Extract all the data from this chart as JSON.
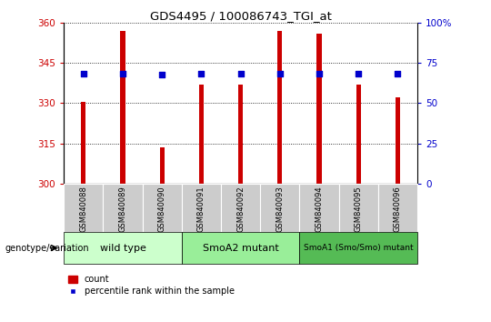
{
  "title": "GDS4495 / 100086743_TGI_at",
  "samples": [
    "GSM840088",
    "GSM840089",
    "GSM840090",
    "GSM840091",
    "GSM840092",
    "GSM840093",
    "GSM840094",
    "GSM840095",
    "GSM840096"
  ],
  "counts": [
    330.5,
    357.0,
    313.5,
    337.0,
    337.0,
    357.0,
    356.0,
    337.0,
    332.0
  ],
  "percentiles": [
    68.0,
    68.5,
    67.5,
    68.0,
    68.0,
    68.5,
    68.5,
    68.0,
    68.0
  ],
  "ylim_left": [
    300,
    360
  ],
  "ylim_right": [
    0,
    100
  ],
  "yticks_left": [
    300,
    315,
    330,
    345,
    360
  ],
  "yticks_right": [
    0,
    25,
    50,
    75,
    100
  ],
  "bar_color": "#cc0000",
  "dot_color": "#0000cc",
  "bar_width": 0.12,
  "groups": [
    {
      "label": "wild type",
      "start": 0,
      "end": 3,
      "color": "#ccffcc"
    },
    {
      "label": "SmoA2 mutant",
      "start": 3,
      "end": 6,
      "color": "#99ee99"
    },
    {
      "label": "SmoA1 (Smo/Smo) mutant",
      "start": 6,
      "end": 9,
      "color": "#55bb55"
    }
  ],
  "legend_count_label": "count",
  "legend_pct_label": "percentile rank within the sample",
  "genotype_label": "genotype/variation",
  "tick_color_left": "#cc0000",
  "tick_color_right": "#0000cc",
  "base_value": 300,
  "label_bg_color": "#cccccc",
  "fig_bg_color": "#ffffff"
}
